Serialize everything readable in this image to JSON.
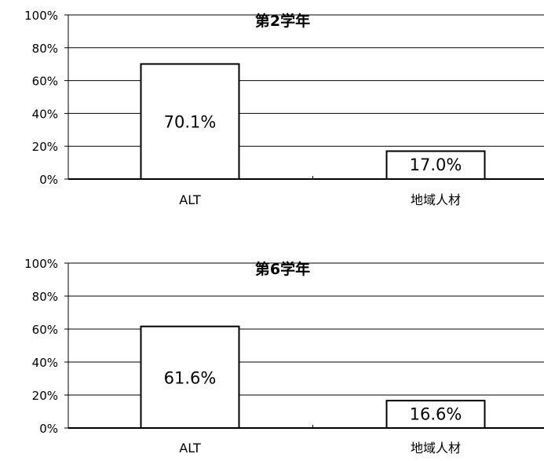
{
  "chart_data": [
    {
      "type": "bar",
      "title": "第2学年",
      "categories": [
        "ALT",
        "地域人材"
      ],
      "values": [
        70.1,
        17.0
      ],
      "value_labels": [
        "70.1%",
        "17.0%"
      ],
      "ylim": [
        0,
        100
      ],
      "yticks": [
        "0%",
        "20%",
        "40%",
        "60%",
        "80%",
        "100%"
      ],
      "grid": true,
      "legend": "none"
    },
    {
      "type": "bar",
      "title": "第6学年",
      "categories": [
        "ALT",
        "地域人材"
      ],
      "values": [
        61.6,
        16.6
      ],
      "value_labels": [
        "61.6%",
        "16.6%"
      ],
      "ylim": [
        0,
        100
      ],
      "yticks": [
        "0%",
        "20%",
        "40%",
        "60%",
        "80%",
        "100%"
      ],
      "grid": true,
      "legend": "none"
    }
  ]
}
